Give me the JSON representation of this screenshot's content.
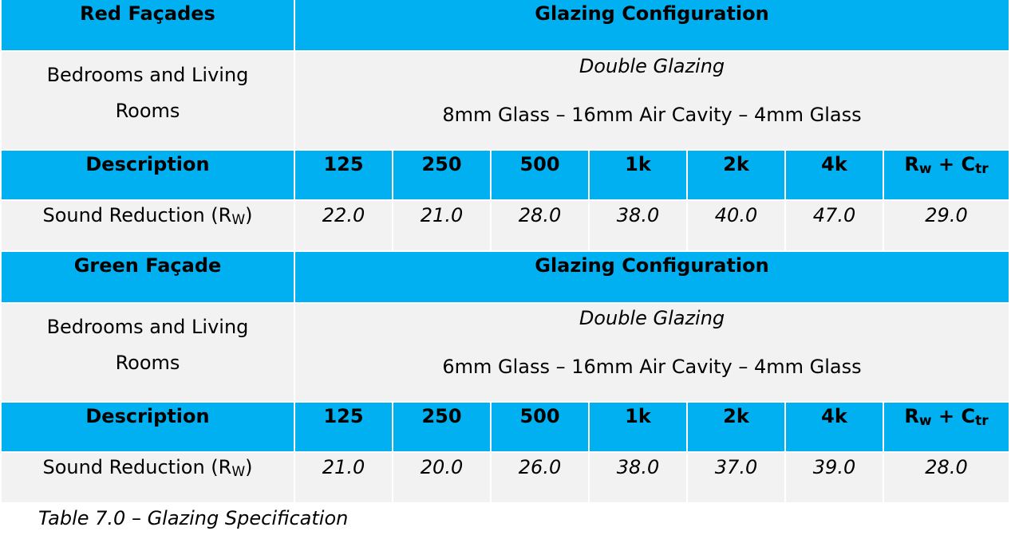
{
  "tables": [
    {
      "facade": "Red Façades",
      "config_header": "Glazing Configuration",
      "room_type": "Bedrooms and Living Rooms",
      "glazing_type": "Double Glazing",
      "glazing_spec": "8mm Glass – 16mm Air Cavity – 4mm Glass",
      "description_header": "Description",
      "bands": [
        "125",
        "250",
        "500",
        "1k",
        "2k",
        "4k"
      ],
      "rating_header": {
        "main": "R",
        "sub1": "w",
        "plus": " + C",
        "sub2": "tr"
      },
      "row_label": {
        "main": "Sound Reduction (R",
        "sub": "W",
        "end": ")"
      },
      "values": [
        "22.0",
        "21.0",
        "28.0",
        "38.0",
        "40.0",
        "47.0"
      ],
      "rating": "29.0"
    },
    {
      "facade": "Green Façade",
      "config_header": "Glazing Configuration",
      "room_type": "Bedrooms and Living Rooms",
      "glazing_type": "Double Glazing",
      "glazing_spec": "6mm Glass – 16mm Air Cavity – 4mm Glass",
      "description_header": "Description",
      "bands": [
        "125",
        "250",
        "500",
        "1k",
        "2k",
        "4k"
      ],
      "rating_header": {
        "main": "R",
        "sub1": "w",
        "plus": " + C",
        "sub2": "tr"
      },
      "row_label": {
        "main": "Sound Reduction (R",
        "sub": "W",
        "end": ")"
      },
      "values": [
        "21.0",
        "20.0",
        "26.0",
        "38.0",
        "37.0",
        "39.0"
      ],
      "rating": "28.0"
    }
  ],
  "caption": "Table 7.0 – Glazing Specification",
  "colors": {
    "header_bg": "#00b0f0",
    "body_bg": "#f2f2f2"
  }
}
